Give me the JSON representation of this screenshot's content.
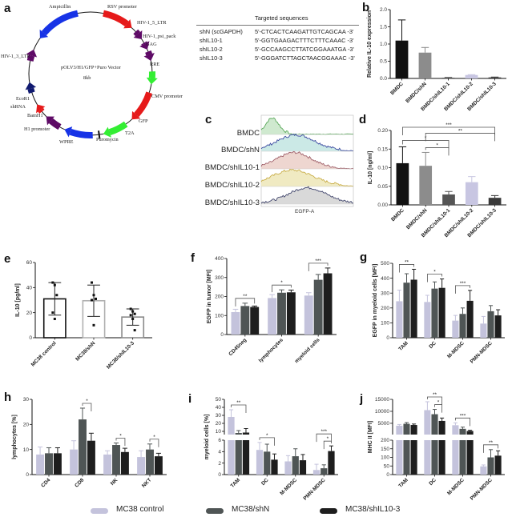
{
  "panel_letters": [
    "a",
    "b",
    "c",
    "d",
    "e",
    "f",
    "g",
    "h",
    "i",
    "j"
  ],
  "plasmid": {
    "title": "pOLV3/H1/GFP+Puro Vector",
    "size": "8kb",
    "features": [
      {
        "name": "Ampicillin",
        "color": "#1733e6"
      },
      {
        "name": "RSV promoter",
        "color": "#e61a1a"
      },
      {
        "name": "HIV-1_5_LTR",
        "color": "#5e0a66"
      },
      {
        "name": "HIV-1_psi_pack",
        "color": "#5e0a66"
      },
      {
        "name": "GAG",
        "color": "#5e0a66"
      },
      {
        "name": "RRE",
        "color": "#33ee33"
      },
      {
        "name": "CMV promoter",
        "color": "#e61a1a"
      },
      {
        "name": "GFP",
        "color": "#33ee33"
      },
      {
        "name": "T2A",
        "color": "#111111"
      },
      {
        "name": "Puromycin",
        "color": "#1733e6"
      },
      {
        "name": "WPRE",
        "color": "#5e0a66"
      },
      {
        "name": "H1 promoter",
        "color": "#e61a1a"
      },
      {
        "name": "BamH1",
        "color": "#e61a1a"
      },
      {
        "name": "shRNA",
        "color": "#101a70"
      },
      {
        "name": "EcoR1",
        "color": "#101a70"
      },
      {
        "name": "HIV-1_3_LTR",
        "color": "#5e0a66"
      }
    ]
  },
  "sequence_table": {
    "header": "Targeted sequences",
    "rows": [
      {
        "name": "shN (scGAPDH)",
        "seq": "5'-CTCACTCAAGATTGTCAGCAA -3'"
      },
      {
        "name": "shIL10-1",
        "seq": "5'-GGTGAAGACTTTCTTTCAAAC -3'"
      },
      {
        "name": "shIL10-2",
        "seq": "5'-GCCAAGCCTTATCGGAAATGA -3'"
      },
      {
        "name": "shIL10-3",
        "seq": "5'-GGGATCTTAGCTAACGGAAAC -3'"
      }
    ]
  },
  "histogram_c": {
    "rows": [
      {
        "label": "BMDC",
        "stroke": "#5aa85a",
        "fill": "#cfe9cf"
      },
      {
        "label": "BMDC/shN",
        "stroke": "#3b4aa0",
        "fill": "#cbe9e6"
      },
      {
        "label": "BMDC/shIL10-1",
        "stroke": "#a0606a",
        "fill": "#eed6d0"
      },
      {
        "label": "BMDC/shIL10-2",
        "stroke": "#c9ae48",
        "fill": "#f0eac2"
      },
      {
        "label": "BMDC/shIL10-3",
        "stroke": "#44486e",
        "fill": "#d9d9d9"
      }
    ],
    "xlabel": "EGFP-A"
  },
  "legend": [
    {
      "label": "MC38 control",
      "color": "#c4c3dc"
    },
    {
      "label": "MC38/shN",
      "color": "#4f5555"
    },
    {
      "label": "MC38/shIL10-3",
      "color": "#1e1e1e"
    }
  ],
  "chart_data": [
    {
      "id": "b",
      "type": "bar",
      "title": "",
      "ylabel": "Relative IL-10 expression",
      "xlabel": "",
      "categories": [
        "BMDC",
        "BMDC/shN",
        "BMDC/shIL10-1",
        "BMDC/shIL10-2",
        "BMDC/shIL10-3"
      ],
      "colors": [
        "#111111",
        "#8c8c8c",
        "#555555",
        "#c8c6e2",
        "#3a3a3a"
      ],
      "values": [
        1.1,
        0.75,
        0.02,
        0.1,
        0.03
      ],
      "errors": [
        0.6,
        0.15,
        0.01,
        0.01,
        0.01
      ],
      "ylim": [
        0,
        2
      ],
      "yticks": [
        0,
        0.5,
        1,
        1.5,
        2
      ],
      "ytick_labels": [
        "0.0",
        "0.5",
        "1.0",
        "1.5",
        "2.0"
      ],
      "significance": []
    },
    {
      "id": "d",
      "type": "bar",
      "title": "",
      "ylabel": "IL-10 [ng/ml]",
      "xlabel": "",
      "categories": [
        "BMDC",
        "BMDC/shN",
        "BMDC/shIL10-1",
        "BMDC/shIL10-2",
        "BMDC/shIL10-3"
      ],
      "colors": [
        "#111111",
        "#8c8c8c",
        "#555555",
        "#c8c6e2",
        "#3a3a3a"
      ],
      "values": [
        0.112,
        0.105,
        0.028,
        0.061,
        0.019
      ],
      "errors": [
        0.044,
        0.036,
        0.008,
        0.015,
        0.006
      ],
      "ylim": [
        0,
        0.2
      ],
      "yticks": [
        0,
        0.05,
        0.1,
        0.15,
        0.2
      ],
      "ytick_labels": [
        "0.00",
        "0.05",
        "0.10",
        "0.15",
        "0.20"
      ],
      "significance": [
        {
          "from": 1,
          "to": 2,
          "label": "*"
        },
        {
          "from": 0,
          "to": 2,
          "label": "*"
        },
        {
          "from": 1,
          "to": 4,
          "label": "**"
        },
        {
          "from": 0,
          "to": 4,
          "label": "***"
        }
      ]
    },
    {
      "id": "e",
      "type": "bar",
      "title": "",
      "ylabel": "IL-10 [pg/ml]",
      "xlabel": "",
      "categories": [
        "MC38 control",
        "MC38/shN",
        "MC38/shIL10-3"
      ],
      "colors": [
        "#111111",
        "#b0b0b0",
        "#8a8a8a"
      ],
      "values": [
        31,
        29.5,
        16.5
      ],
      "errors": [
        13,
        12.5,
        6.5
      ],
      "points": [
        [
          44,
          42,
          34,
          20,
          15
        ],
        [
          44,
          34,
          31,
          30,
          10
        ],
        [
          23,
          21,
          19,
          18,
          15,
          6
        ]
      ],
      "ylim": [
        0,
        60
      ],
      "yticks": [
        0,
        20,
        40,
        60
      ],
      "ytick_labels": [
        "0",
        "20",
        "40",
        "60"
      ],
      "significance": []
    },
    {
      "id": "f",
      "type": "bar",
      "title": "",
      "ylabel": "EGFP in tumor [MFI]",
      "xlabel": "",
      "categories": [
        "CD45neg",
        "lymphocytes",
        "myeloid cells"
      ],
      "series": [
        {
          "name": "MC38 control",
          "values": [
            118,
            192,
            205
          ],
          "errors": [
            15,
            18,
            15
          ]
        },
        {
          "name": "MC38/shN",
          "values": [
            150,
            220,
            288
          ],
          "errors": [
            15,
            15,
            28
          ]
        },
        {
          "name": "MC38/shIL10-3",
          "values": [
            145,
            222,
            322
          ],
          "errors": [
            5,
            12,
            28
          ]
        }
      ],
      "ylim": [
        0,
        400
      ],
      "yticks": [
        0,
        100,
        200,
        300,
        400
      ],
      "ytick_labels": [
        "0",
        "100",
        "200",
        "300",
        "400"
      ],
      "significance": [
        {
          "group": 0,
          "from": 0,
          "to": 2,
          "label": "**"
        },
        {
          "group": 1,
          "from": 0,
          "to": 2,
          "label": "*"
        },
        {
          "group": 2,
          "from": 0,
          "to": 2,
          "label": "***"
        }
      ]
    },
    {
      "id": "g",
      "type": "bar",
      "title": "",
      "ylabel": "EGFP in myeloid cells [MFI]",
      "xlabel": "",
      "categories": [
        "TAM",
        "DC",
        "M-MDSC",
        "PMN-MDSC"
      ],
      "series": [
        {
          "name": "MC38 control",
          "values": [
            245,
            240,
            115,
            95
          ],
          "errors": [
            75,
            45,
            35,
            48
          ]
        },
        {
          "name": "MC38/shN",
          "values": [
            370,
            330,
            160,
            178
          ],
          "errors": [
            60,
            45,
            40,
            38
          ]
        },
        {
          "name": "MC38/shIL10-3",
          "values": [
            390,
            335,
            248,
            150
          ],
          "errors": [
            70,
            60,
            70,
            38
          ]
        }
      ],
      "ylim": [
        0,
        500
      ],
      "yticks": [
        0,
        100,
        200,
        300,
        400,
        500
      ],
      "ytick_labels": [
        "0",
        "100",
        "200",
        "300",
        "400",
        "500"
      ],
      "significance": [
        {
          "group": 0,
          "from": 0,
          "to": 2,
          "label": "**"
        },
        {
          "group": 1,
          "from": 0,
          "to": 2,
          "label": "*"
        },
        {
          "group": 2,
          "from": 0,
          "to": 2,
          "label": "***"
        }
      ]
    },
    {
      "id": "h",
      "type": "bar",
      "title": "",
      "ylabel": "lymphocytes [%]",
      "xlabel": "",
      "categories": [
        "CD4",
        "CD8",
        "NK",
        "NKT"
      ],
      "series": [
        {
          "name": "MC38 control",
          "values": [
            8,
            10,
            8,
            7
          ],
          "errors": [
            3,
            3.5,
            1.5,
            2.5
          ]
        },
        {
          "name": "MC38/shN",
          "values": [
            8.5,
            22,
            11.8,
            10
          ],
          "errors": [
            2.2,
            4.5,
            0.8,
            2.2
          ]
        },
        {
          "name": "MC38/shIL10-3",
          "values": [
            8.5,
            13.5,
            9,
            7.3
          ],
          "errors": [
            2.2,
            3,
            1.5,
            1.2
          ]
        }
      ],
      "ylim": [
        0,
        30
      ],
      "yticks": [
        0,
        10,
        20,
        30
      ],
      "ytick_labels": [
        "0",
        "10",
        "20",
        "30"
      ],
      "significance": [
        {
          "group": 1,
          "from": 1,
          "to": 2,
          "label": "*"
        },
        {
          "group": 2,
          "from": 1,
          "to": 2,
          "label": "*"
        },
        {
          "group": 3,
          "from": 1,
          "to": 2,
          "label": "*"
        }
      ]
    },
    {
      "id": "i",
      "type": "bar",
      "title": "",
      "ylabel": "myeloid cells [%]",
      "xlabel": "",
      "categories": [
        "TAM",
        "DC",
        "M-MDSC",
        "PMN-MDSC"
      ],
      "series": [
        {
          "name": "MC38 control",
          "values": [
            28,
            4.3,
            2.3,
            0.8
          ],
          "errors": [
            9,
            1.3,
            1,
            1
          ]
        },
        {
          "name": "MC38/shN",
          "values": [
            8,
            4,
            3.2,
            1.1
          ],
          "errors": [
            3,
            1.3,
            1.3,
            0.6
          ]
        },
        {
          "name": "MC38/shIL10-3",
          "values": [
            8.5,
            2.6,
            2.5,
            4.1
          ],
          "errors": [
            5,
            1,
            1,
            0.9
          ]
        }
      ],
      "ylim": [
        0,
        50
      ],
      "axis_break": [
        6,
        6
      ],
      "yticks": [
        0,
        2,
        4,
        6,
        10,
        20,
        30,
        40,
        50
      ],
      "ytick_labels": [
        "0",
        "2",
        "4",
        "6",
        "10",
        "20",
        "30",
        "40",
        "50"
      ],
      "significance": [
        {
          "group": 0,
          "from": 0,
          "to": 2,
          "label": "**"
        },
        {
          "group": 1,
          "from": 0,
          "to": 2,
          "label": "*"
        },
        {
          "group": 3,
          "from": 1,
          "to": 2,
          "label": "*"
        },
        {
          "group": 3,
          "from": 0,
          "to": 2,
          "label": "***"
        }
      ]
    },
    {
      "id": "j",
      "type": "bar",
      "title": "",
      "ylabel": "MHC II [MFI]",
      "xlabel": "",
      "categories": [
        "TAM",
        "DC",
        "M-MDSC",
        "PMN-MDSC"
      ],
      "series": [
        {
          "name": "MC38 control",
          "values": [
            4000,
            10500,
            4200,
            48
          ],
          "errors": [
            500,
            3500,
            1000,
            8
          ]
        },
        {
          "name": "MC38/shN",
          "values": [
            4800,
            8800,
            2700,
            100
          ],
          "errors": [
            500,
            2000,
            700,
            45
          ]
        },
        {
          "name": "MC38/shIL10-3",
          "values": [
            4300,
            6000,
            1800,
            110
          ],
          "errors": [
            400,
            1200,
            300,
            28
          ]
        }
      ],
      "ylim": [
        0,
        15000
      ],
      "axis_break": [
        200,
        300
      ],
      "yticks": [
        0,
        50,
        100,
        150,
        200,
        5000,
        10000,
        15000
      ],
      "ytick_labels": [
        "0",
        "50",
        "100",
        "150",
        "200",
        "5000",
        "10000",
        "15000"
      ],
      "significance": [
        {
          "group": 1,
          "from": 1,
          "to": 2,
          "label": "*"
        },
        {
          "group": 1,
          "from": 0,
          "to": 2,
          "label": "**"
        },
        {
          "group": 2,
          "from": 0,
          "to": 2,
          "label": "***"
        },
        {
          "group": 3,
          "from": 0,
          "to": 2,
          "label": "**"
        }
      ]
    }
  ]
}
